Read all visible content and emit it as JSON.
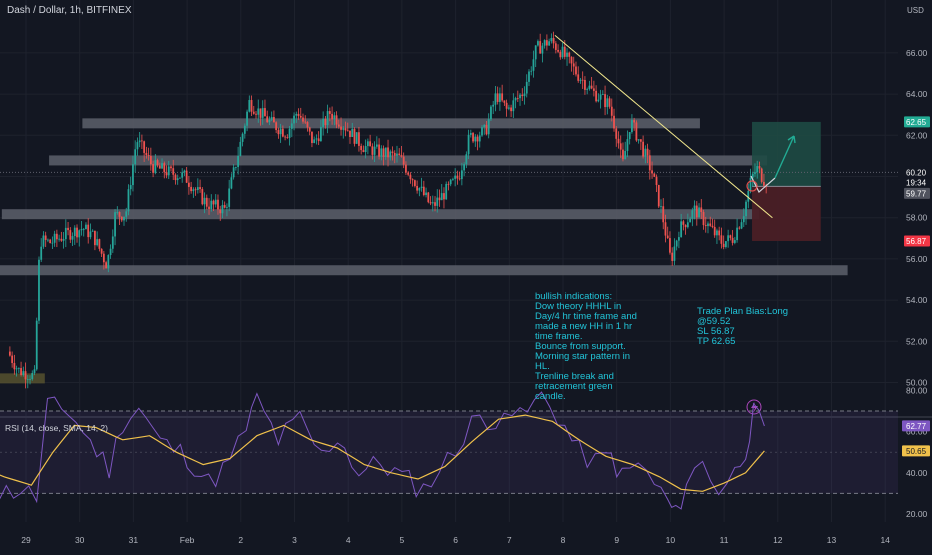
{
  "header": {
    "symbol_title": "Dash / Dollar, 1h, BITFINEX"
  },
  "currency_label": "USD",
  "colors": {
    "background": "#131722",
    "up_candle": "#26a69a",
    "down_candle": "#ef5350",
    "zone_gray": "#5d606b",
    "trendline": "#f0e68c",
    "projection_line": "#d1d4dc",
    "arrow_green": "#22ab94",
    "tp_zone": "#1e4a44",
    "sl_zone": "#4a1f26",
    "rsi_line": "#7e57c2",
    "rsi_sma": "#f0c14b",
    "note_text": "#22c4d8"
  },
  "chart_data": [
    {
      "type": "candlestick",
      "title": "Dash / Dollar, 1h, BITFINEX",
      "x_tick_labels": [
        "29",
        "30",
        "31",
        "Feb",
        "2",
        "3",
        "4",
        "5",
        "6",
        "7",
        "8",
        "9",
        "10",
        "11",
        "12",
        "13",
        "14"
      ],
      "y_tick_labels": [
        "50.00",
        "52.00",
        "54.00",
        "56.00",
        "58.00",
        "60.00",
        "62.00",
        "64.00",
        "66.00"
      ],
      "ylim": [
        49.3,
        67.4
      ],
      "price_path": [
        [
          28.7,
          51.5
        ],
        [
          28.9,
          50.6
        ],
        [
          29.1,
          50.4
        ],
        [
          29.2,
          50.3
        ],
        [
          29.25,
          53.5
        ],
        [
          29.3,
          56.9
        ],
        [
          29.5,
          56.8
        ],
        [
          29.8,
          57.2
        ],
        [
          30.1,
          57.5
        ],
        [
          30.3,
          57.1
        ],
        [
          30.55,
          55.7
        ],
        [
          30.7,
          58.1
        ],
        [
          30.9,
          58.2
        ],
        [
          31.1,
          61.8
        ],
        [
          31.4,
          60.5
        ],
        [
          31.7,
          60.2
        ],
        [
          32.0,
          60.0
        ],
        [
          32.4,
          58.7
        ],
        [
          32.75,
          58.4
        ],
        [
          33.0,
          61.2
        ],
        [
          33.2,
          63.6
        ],
        [
          33.6,
          62.6
        ],
        [
          33.9,
          62.1
        ],
        [
          34.1,
          63.2
        ],
        [
          34.4,
          61.6
        ],
        [
          34.7,
          63.1
        ],
        [
          35.0,
          62.4
        ],
        [
          35.3,
          61.5
        ],
        [
          35.6,
          61.2
        ],
        [
          36.0,
          60.9
        ],
        [
          36.3,
          59.7
        ],
        [
          36.6,
          58.5
        ],
        [
          36.9,
          59.4
        ],
        [
          37.1,
          60.0
        ],
        [
          37.3,
          61.9
        ],
        [
          37.6,
          62.2
        ],
        [
          37.8,
          64.0
        ],
        [
          38.0,
          63.2
        ],
        [
          38.3,
          64.1
        ],
        [
          38.55,
          66.2
        ],
        [
          38.8,
          66.6
        ],
        [
          39.0,
          66.1
        ],
        [
          39.3,
          65.0
        ],
        [
          39.6,
          64.1
        ],
        [
          39.9,
          63.5
        ],
        [
          40.05,
          62.0
        ],
        [
          40.15,
          60.5
        ],
        [
          40.3,
          62.7
        ],
        [
          40.5,
          61.5
        ],
        [
          40.7,
          60.2
        ],
        [
          40.9,
          58.0
        ],
        [
          41.05,
          55.9
        ],
        [
          41.2,
          57.4
        ],
        [
          41.5,
          58.4
        ],
        [
          41.75,
          57.6
        ],
        [
          42.0,
          56.8
        ],
        [
          42.2,
          57.0
        ],
        [
          42.4,
          58.2
        ],
        [
          42.55,
          59.9
        ],
        [
          42.65,
          60.4
        ],
        [
          42.8,
          59.8
        ]
      ],
      "support_resistance_zones": [
        {
          "price": 62.58,
          "from_day": 30.05,
          "to_day": 41.55
        },
        {
          "price": 60.78,
          "from_day": 29.43,
          "to_day": 42.8
        },
        {
          "price": 58.17,
          "from_day": 28.55,
          "to_day": 42.65
        },
        {
          "price": 55.45,
          "from_day": 28.05,
          "to_day": 44.3
        },
        {
          "price": 50.2,
          "from_day": 28.0,
          "to_day": 29.35
        }
      ],
      "trendline": {
        "from": [
          38.85,
          66.85
        ],
        "to": [
          42.9,
          58.0
        ]
      },
      "trade_plan": {
        "bias": "Long",
        "entry": 59.52,
        "stop_loss": 56.87,
        "take_profit": 62.65,
        "zone_from_day": 42.52,
        "zone_to_day": 43.8
      },
      "right_axis_markers": [
        {
          "text": "62.65",
          "price": 62.65,
          "color": "#22ab94"
        },
        {
          "text": "60.20",
          "price": 60.2,
          "color": "#131722"
        },
        {
          "text": "19:34",
          "price": 59.95,
          "color": "#131722"
        },
        {
          "text": "59.77",
          "price": 59.77,
          "color": "#50535e"
        },
        {
          "text": "56.87",
          "price": 56.87,
          "color": "#f23645"
        }
      ]
    },
    {
      "type": "line",
      "title": "RSI (14, close, SMA, 14, 2)",
      "y_tick_labels": [
        "20.00",
        "40.00",
        "60.00",
        "80.00"
      ],
      "ylim": [
        16,
        87
      ],
      "bands": [
        30,
        70
      ],
      "series": [
        {
          "name": "RSI",
          "points": [
            [
              28.0,
              40
            ],
            [
              28.5,
              30
            ],
            [
              28.9,
              32
            ],
            [
              29.2,
              28
            ],
            [
              29.4,
              72
            ],
            [
              29.8,
              70
            ],
            [
              30.2,
              55
            ],
            [
              30.55,
              42
            ],
            [
              30.8,
              65
            ],
            [
              31.1,
              72
            ],
            [
              31.5,
              55
            ],
            [
              32.0,
              48
            ],
            [
              32.4,
              35
            ],
            [
              32.8,
              45
            ],
            [
              33.1,
              62
            ],
            [
              33.3,
              75
            ],
            [
              33.7,
              56
            ],
            [
              34.1,
              66
            ],
            [
              34.5,
              48
            ],
            [
              34.8,
              58
            ],
            [
              35.2,
              40
            ],
            [
              35.6,
              45
            ],
            [
              36.0,
              38
            ],
            [
              36.4,
              32
            ],
            [
              36.7,
              42
            ],
            [
              37.0,
              50
            ],
            [
              37.3,
              68
            ],
            [
              37.6,
              60
            ],
            [
              37.9,
              74
            ],
            [
              38.2,
              66
            ],
            [
              38.6,
              77
            ],
            [
              38.9,
              68
            ],
            [
              39.3,
              50
            ],
            [
              39.6,
              45
            ],
            [
              39.9,
              48
            ],
            [
              40.1,
              38
            ],
            [
              40.4,
              44
            ],
            [
              40.7,
              35
            ],
            [
              40.95,
              26
            ],
            [
              41.1,
              19
            ],
            [
              41.3,
              36
            ],
            [
              41.6,
              45
            ],
            [
              41.9,
              32
            ],
            [
              42.2,
              40
            ],
            [
              42.4,
              52
            ],
            [
              42.55,
              68
            ],
            [
              42.75,
              62.77
            ]
          ]
        },
        {
          "name": "RSI-based MA",
          "points": [
            [
              28.0,
              44
            ],
            [
              28.6,
              38
            ],
            [
              29.1,
              34
            ],
            [
              29.5,
              50
            ],
            [
              29.9,
              63
            ],
            [
              30.3,
              62
            ],
            [
              30.8,
              56
            ],
            [
              31.3,
              58
            ],
            [
              31.8,
              50
            ],
            [
              32.3,
              44
            ],
            [
              32.8,
              47
            ],
            [
              33.3,
              58
            ],
            [
              33.8,
              63
            ],
            [
              34.3,
              56
            ],
            [
              34.8,
              52
            ],
            [
              35.3,
              44
            ],
            [
              35.8,
              40
            ],
            [
              36.3,
              37
            ],
            [
              36.8,
              43
            ],
            [
              37.3,
              55
            ],
            [
              37.8,
              66
            ],
            [
              38.3,
              68
            ],
            [
              38.8,
              65
            ],
            [
              39.3,
              56
            ],
            [
              39.8,
              48
            ],
            [
              40.3,
              44
            ],
            [
              40.8,
              38
            ],
            [
              41.2,
              32
            ],
            [
              41.6,
              31
            ],
            [
              42.0,
              35
            ],
            [
              42.4,
              40
            ],
            [
              42.75,
              50.65
            ]
          ]
        }
      ],
      "markers": [
        {
          "text": "62.77",
          "value": 62.77,
          "color": "#7e57c2"
        },
        {
          "text": "50.65",
          "value": 50.65,
          "color": "#f0c14b"
        }
      ]
    }
  ],
  "notes": {
    "bullish": "bullish indications:\nDow theory HHHL in\nDay/4 hr time frame and\nmade a new HH in 1 hr\ntime frame.\nBounce from support.\nMorning star pattern in\nHL.\nTrenline break and\nretracement green\ncandle.",
    "trade_plan": "Trade Plan Bias:Long\n@59.52\nSL 56.87\nTP 62.65"
  }
}
